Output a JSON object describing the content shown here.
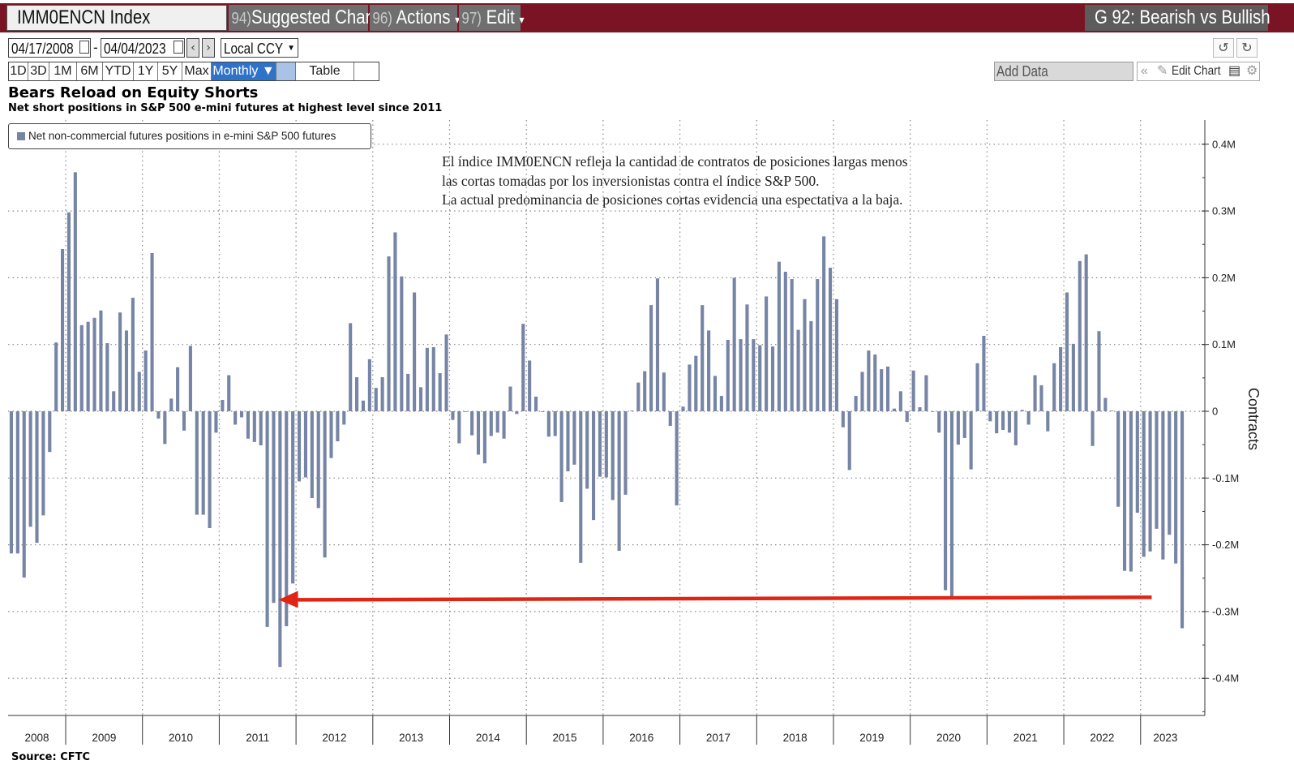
{
  "header": {
    "ticker": "IMM0ENCN Index",
    "menu": [
      {
        "num": "94)",
        "label": "Suggested Charts"
      },
      {
        "num": "96)",
        "label": "Actions",
        "caret": "▾"
      },
      {
        "num": "97)",
        "label": "Edit",
        "caret": "▾"
      }
    ],
    "chart_name": "G 92: Bearish vs Bullish"
  },
  "controls": {
    "start_date": "04/17/2008",
    "date_sep": "-",
    "end_date": "04/04/2023",
    "currency": "Local CCY",
    "periods": [
      "1D",
      "3D",
      "1M",
      "6M",
      "YTD",
      "1Y",
      "5Y",
      "Max"
    ],
    "frequency": "Monthly ▼",
    "table_label": "Table",
    "add_data_placeholder": "Add Data",
    "edit_chart_label": "Edit Chart"
  },
  "colors": {
    "bar": "#7684a5",
    "arrow": "#e02514",
    "header_band": "#7a1424",
    "selected": "#2f73c9"
  },
  "chart_data": {
    "type": "bar",
    "title": "Bears Reload on Equity Shorts",
    "subtitle": "Net short positions in S&P 500 e-mini futures at highest level since 2011",
    "legend": "Net non-commercial futures positions in e-mini S&P 500 futures",
    "ylabel": "Contracts",
    "y_axis_side": "right",
    "ylim": [
      -0.455,
      0.435
    ],
    "y_ticks": [
      {
        "v": 0.4,
        "label": "0.4M"
      },
      {
        "v": 0.3,
        "label": "0.3M"
      },
      {
        "v": 0.2,
        "label": "0.2M"
      },
      {
        "v": 0.1,
        "label": "0.1M"
      },
      {
        "v": 0,
        "label": "0"
      },
      {
        "v": -0.1,
        "label": "-0.1M"
      },
      {
        "v": -0.2,
        "label": "-0.2M"
      },
      {
        "v": -0.3,
        "label": "-0.3M"
      },
      {
        "v": -0.4,
        "label": "-0.4M"
      }
    ],
    "unit": "millions of contracts",
    "frequency": "monthly",
    "start": "2008-04",
    "year_labels": [
      "2008",
      "2009",
      "2010",
      "2011",
      "2012",
      "2013",
      "2014",
      "2015",
      "2016",
      "2017",
      "2018",
      "2019",
      "2020",
      "2021",
      "2022",
      "2023"
    ],
    "grid": true,
    "annotation_arrow": {
      "from": "2023-03",
      "to": "2011-08",
      "level": -0.32
    },
    "values": [
      -0.213,
      -0.213,
      -0.249,
      -0.173,
      -0.197,
      -0.156,
      -0.061,
      0.103,
      0.243,
      0.298,
      0.358,
      0.129,
      0.134,
      0.14,
      0.151,
      0.102,
      0.03,
      0.148,
      0.121,
      0.17,
      0.059,
      0.091,
      0.237,
      -0.011,
      -0.049,
      0.019,
      0.066,
      -0.029,
      0.098,
      -0.155,
      -0.155,
      -0.175,
      -0.032,
      0.017,
      0.054,
      -0.02,
      -0.009,
      -0.041,
      -0.046,
      -0.051,
      -0.323,
      -0.287,
      -0.383,
      -0.322,
      -0.258,
      -0.105,
      -0.099,
      -0.13,
      -0.145,
      -0.219,
      -0.07,
      -0.045,
      -0.02,
      0.132,
      0.051,
      0.016,
      0.078,
      0.035,
      0.051,
      0.232,
      0.268,
      0.202,
      0.056,
      0.178,
      0.036,
      0.095,
      0.096,
      0.057,
      0.115,
      -0.013,
      -0.048,
      -0.001,
      -0.036,
      -0.065,
      -0.078,
      -0.037,
      -0.032,
      -0.041,
      0.037,
      -0.004,
      0.131,
      0.076,
      0.022,
      -0.001,
      -0.038,
      -0.037,
      -0.136,
      -0.09,
      -0.08,
      -0.227,
      -0.116,
      -0.163,
      -0.098,
      -0.099,
      -0.133,
      -0.209,
      -0.125,
      0.001,
      0.043,
      0.06,
      0.159,
      0.199,
      0.058,
      -0.022,
      -0.141,
      0.007,
      0.07,
      0.083,
      0.159,
      0.121,
      0.053,
      0.023,
      0.107,
      0.2,
      0.108,
      0.16,
      0.108,
      0.099,
      0.172,
      0.097,
      0.224,
      0.209,
      0.198,
      0.122,
      0.168,
      0.135,
      0.198,
      0.262,
      0.215,
      0.168,
      -0.024,
      -0.088,
      0.023,
      0.059,
      0.091,
      0.085,
      0.063,
      0.067,
      0.004,
      0.03,
      -0.016,
      0.061,
      0.006,
      0.054,
      -0.001,
      -0.032,
      -0.268,
      -0.28,
      -0.05,
      -0.04,
      -0.087,
      0.072,
      0.113,
      -0.015,
      -0.033,
      -0.028,
      -0.032,
      -0.051,
      0.002,
      -0.02,
      0.054,
      0.039,
      -0.03,
      0.072,
      0.096,
      0.178,
      0.101,
      0.225,
      0.235,
      -0.052,
      0.12,
      0.02,
      0.001,
      -0.143,
      -0.239,
      -0.24,
      -0.152,
      -0.218,
      -0.21,
      -0.176,
      -0.222,
      -0.185,
      -0.228,
      -0.325
    ]
  },
  "source": "Source: CFTC"
}
